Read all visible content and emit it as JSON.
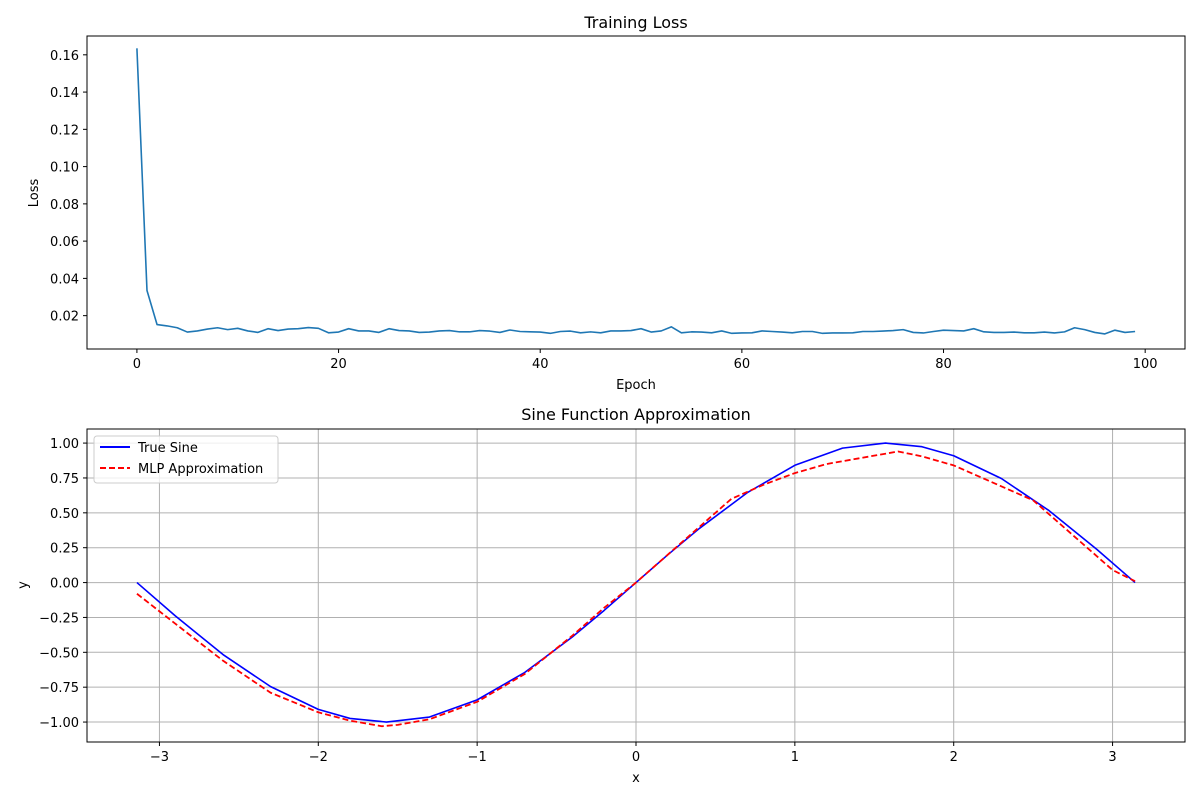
{
  "chart_data": [
    {
      "type": "line",
      "title": "Training Loss",
      "xlabel": "Epoch",
      "ylabel": "Loss",
      "xlim": [
        -4.95,
        103.95
      ],
      "ylim": [
        0.0021,
        0.1701
      ],
      "xticks": [
        0,
        20,
        40,
        60,
        80,
        100
      ],
      "xtick_labels": [
        "0",
        "20",
        "40",
        "60",
        "80",
        "100"
      ],
      "yticks": [
        0.02,
        0.04,
        0.06,
        0.08,
        0.1,
        0.12,
        0.14,
        0.16
      ],
      "ytick_labels": [
        "0.02",
        "0.04",
        "0.06",
        "0.08",
        "0.10",
        "0.12",
        "0.14",
        "0.16"
      ],
      "grid": false,
      "series": [
        {
          "color": "#1f77b4",
          "x": [
            0,
            1,
            2,
            3,
            4,
            5,
            6,
            7,
            8,
            9,
            10,
            11,
            12,
            13,
            14,
            15,
            16,
            17,
            18,
            19,
            20,
            21,
            22,
            23,
            24,
            25,
            26,
            27,
            28,
            29,
            30,
            31,
            32,
            33,
            34,
            35,
            36,
            37,
            38,
            39,
            40,
            41,
            42,
            43,
            44,
            45,
            46,
            47,
            48,
            49,
            50,
            51,
            52,
            53,
            54,
            55,
            56,
            57,
            58,
            59,
            60,
            61,
            62,
            63,
            64,
            65,
            66,
            67,
            68,
            69,
            70,
            71,
            72,
            73,
            74,
            75,
            76,
            77,
            78,
            79,
            80,
            81,
            82,
            83,
            84,
            85,
            86,
            87,
            88,
            89,
            90,
            91,
            92,
            93,
            94,
            95,
            96,
            97,
            98,
            99
          ],
          "values": [
            0.1635,
            0.0335,
            0.0152,
            0.0145,
            0.0135,
            0.0112,
            0.0118,
            0.0128,
            0.0135,
            0.0125,
            0.0132,
            0.0118,
            0.011,
            0.013,
            0.012,
            0.0128,
            0.013,
            0.0136,
            0.0132,
            0.0108,
            0.0112,
            0.013,
            0.0118,
            0.0118,
            0.011,
            0.013,
            0.012,
            0.0118,
            0.011,
            0.0112,
            0.0118,
            0.012,
            0.0113,
            0.0113,
            0.012,
            0.0117,
            0.011,
            0.0123,
            0.0115,
            0.0113,
            0.0112,
            0.0105,
            0.0115,
            0.0117,
            0.0108,
            0.0113,
            0.0108,
            0.0118,
            0.0118,
            0.012,
            0.013,
            0.0112,
            0.0118,
            0.014,
            0.0108,
            0.0113,
            0.0112,
            0.0108,
            0.0118,
            0.0105,
            0.0107,
            0.0108,
            0.0118,
            0.0115,
            0.0112,
            0.0108,
            0.0115,
            0.0115,
            0.0105,
            0.0107,
            0.0107,
            0.0108,
            0.0115,
            0.0115,
            0.0117,
            0.012,
            0.0125,
            0.011,
            0.0107,
            0.0115,
            0.0122,
            0.012,
            0.0118,
            0.013,
            0.0113,
            0.011,
            0.011,
            0.0112,
            0.0108,
            0.0108,
            0.0112,
            0.0107,
            0.0113,
            0.0135,
            0.0125,
            0.011,
            0.0102,
            0.0122,
            0.011,
            0.0115
          ]
        }
      ]
    },
    {
      "type": "line",
      "title": "Sine Function Approximation",
      "xlabel": "x",
      "ylabel": "y",
      "xlim": [
        -3.456,
        3.456
      ],
      "ylim": [
        -1.143,
        1.101
      ],
      "xticks": [
        -3,
        -2,
        -1,
        0,
        1,
        2,
        3
      ],
      "xtick_labels": [
        "−3",
        "−2",
        "−1",
        "0",
        "1",
        "2",
        "3"
      ],
      "yticks": [
        -1.0,
        -0.75,
        -0.5,
        -0.25,
        0.0,
        0.25,
        0.5,
        0.75,
        1.0
      ],
      "ytick_labels": [
        "−1.00",
        "−0.75",
        "−0.50",
        "−0.25",
        "0.00",
        "0.25",
        "0.50",
        "0.75",
        "1.00"
      ],
      "grid": true,
      "legend_position": "upper-left",
      "series": [
        {
          "name": "True Sine",
          "color": "#0000ff",
          "style": "solid",
          "x": [
            -3.1416,
            -2.9,
            -2.6,
            -2.3,
            -2.0,
            -1.8,
            -1.5708,
            -1.3,
            -1.0,
            -0.7,
            -0.4,
            -0.2,
            0.0,
            0.2,
            0.4,
            0.7,
            1.0,
            1.3,
            1.5708,
            1.8,
            2.0,
            2.3,
            2.6,
            2.9,
            3.1416
          ],
          "values": [
            0.0,
            -0.239,
            -0.516,
            -0.746,
            -0.909,
            -0.974,
            -1.0,
            -0.964,
            -0.841,
            -0.644,
            -0.389,
            -0.199,
            0.0,
            0.199,
            0.389,
            0.644,
            0.841,
            0.964,
            1.0,
            0.974,
            0.909,
            0.746,
            0.516,
            0.239,
            0.0
          ]
        },
        {
          "name": "MLP Approximation",
          "color": "#ff0000",
          "style": "dashed",
          "x": [
            -3.1416,
            -2.9,
            -2.6,
            -2.3,
            -2.0,
            -1.8,
            -1.6,
            -1.5,
            -1.3,
            -1.0,
            -0.7,
            -0.4,
            -0.2,
            0.0,
            0.2,
            0.4,
            0.6,
            0.8,
            1.0,
            1.2,
            1.4,
            1.65,
            1.8,
            2.0,
            2.2,
            2.5,
            2.8,
            3.0,
            3.1416
          ],
          "values": [
            -0.08,
            -0.295,
            -0.56,
            -0.79,
            -0.93,
            -0.99,
            -1.03,
            -1.02,
            -0.98,
            -0.855,
            -0.655,
            -0.38,
            -0.18,
            0.0,
            0.2,
            0.4,
            0.6,
            0.7,
            0.785,
            0.85,
            0.89,
            0.94,
            0.905,
            0.84,
            0.74,
            0.59,
            0.29,
            0.09,
            0.01
          ]
        }
      ]
    }
  ]
}
